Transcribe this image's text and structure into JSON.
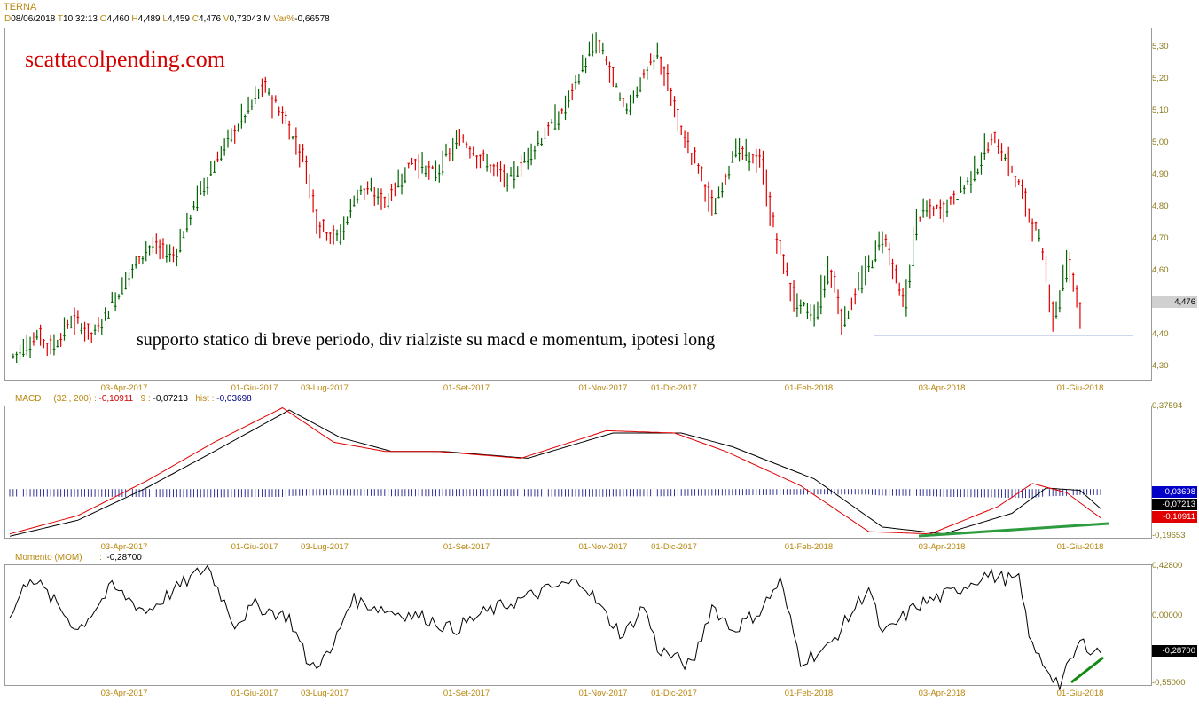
{
  "header": {
    "symbol": "TERNA",
    "d_label": "D",
    "date": "08/06/2018",
    "t_label": "T",
    "time": "10:32:13",
    "o_label": "O",
    "open": "4,460",
    "h_label": "H",
    "high": "4,489",
    "l_label": "L",
    "low": "4,459",
    "c_label": "C",
    "close": "4,476",
    "v_label": "V",
    "volume": "0,73043 M",
    "var_label": "Var%",
    "var": "-0,66578"
  },
  "watermark": "scattacolpending.com",
  "annotation": "supporto statico di breve periodo, div rialziste su macd e momentum, ipotesi long",
  "date_labels": [
    "03-Apr-2017",
    "01-Giu-2017",
    "03-Lug-2017",
    "01-Set-2017",
    "01-Nov-2017",
    "01-Dic-2017",
    "01-Feb-2018",
    "03-Apr-2018",
    "01-Giu-2018"
  ],
  "price_axis": [
    "5,30",
    "5,20",
    "5,10",
    "5,00",
    "4,90",
    "4,80",
    "4,70",
    "4,60",
    "4,50",
    "4,40",
    "4,30"
  ],
  "price_badge": "4,476",
  "macd": {
    "title": "MACD",
    "params": "(32 , 200) :",
    "value": "-0,10911",
    "signal_label": "9 :",
    "signal": "-0,07213",
    "hist_label": "hist :",
    "hist": "-0,03698",
    "axis_top": "0,37594",
    "axis_bottom": "-0,19653"
  },
  "momentum": {
    "title": "Momento (MOM)",
    "sep": ":",
    "value": "-0,28700",
    "axis_top": "0,42800",
    "axis_mid": "0,00000",
    "axis_bottom": "-0,55000"
  },
  "colors": {
    "up": "#006400",
    "down": "#e00000",
    "accent": "#b8860b",
    "support": "#4060c0",
    "trend": "#2e9b3e",
    "watermark": "#d40000"
  },
  "chart_data": [
    {
      "type": "candlestick",
      "title": "TERNA",
      "ylim": [
        4.26,
        5.36
      ],
      "x_dates": [
        "03-Apr-2017",
        "01-Giu-2017",
        "03-Lug-2017",
        "01-Set-2017",
        "01-Nov-2017",
        "01-Dic-2017",
        "01-Feb-2018",
        "03-Apr-2018",
        "01-Giu-2018"
      ],
      "anchors": [
        [
          0,
          4.33
        ],
        [
          8,
          4.4
        ],
        [
          12,
          4.36
        ],
        [
          18,
          4.45
        ],
        [
          24,
          4.4
        ],
        [
          34,
          4.58
        ],
        [
          40,
          4.68
        ],
        [
          48,
          4.65
        ],
        [
          55,
          4.84
        ],
        [
          62,
          4.98
        ],
        [
          68,
          5.08
        ],
        [
          74,
          5.18
        ],
        [
          80,
          5.08
        ],
        [
          86,
          4.95
        ],
        [
          90,
          4.75
        ],
        [
          96,
          4.7
        ],
        [
          102,
          4.86
        ],
        [
          110,
          4.82
        ],
        [
          118,
          4.95
        ],
        [
          124,
          4.9
        ],
        [
          132,
          5.02
        ],
        [
          138,
          4.95
        ],
        [
          146,
          4.88
        ],
        [
          154,
          5.0
        ],
        [
          162,
          5.1
        ],
        [
          168,
          5.25
        ],
        [
          172,
          5.32
        ],
        [
          176,
          5.22
        ],
        [
          180,
          5.1
        ],
        [
          186,
          5.22
        ],
        [
          190,
          5.28
        ],
        [
          196,
          5.05
        ],
        [
          202,
          4.92
        ],
        [
          206,
          4.78
        ],
        [
          212,
          4.98
        ],
        [
          220,
          4.94
        ],
        [
          224,
          4.72
        ],
        [
          230,
          4.5
        ],
        [
          236,
          4.46
        ],
        [
          240,
          4.62
        ],
        [
          244,
          4.44
        ],
        [
          250,
          4.58
        ],
        [
          256,
          4.72
        ],
        [
          262,
          4.48
        ],
        [
          266,
          4.78
        ],
        [
          274,
          4.8
        ],
        [
          282,
          4.9
        ],
        [
          288,
          5.02
        ],
        [
          292,
          4.95
        ],
        [
          296,
          4.86
        ],
        [
          302,
          4.68
        ],
        [
          306,
          4.45
        ],
        [
          310,
          4.64
        ],
        [
          314,
          4.46
        ]
      ],
      "support": 4.4
    },
    {
      "type": "line",
      "name": "MACD (32 , 200)",
      "ylim": [
        -0.19653,
        0.37594
      ],
      "macd_anchors": [
        [
          0,
          -0.18
        ],
        [
          20,
          -0.1
        ],
        [
          40,
          0.05
        ],
        [
          60,
          0.22
        ],
        [
          80,
          0.37
        ],
        [
          95,
          0.22
        ],
        [
          110,
          0.18
        ],
        [
          125,
          0.18
        ],
        [
          150,
          0.15
        ],
        [
          175,
          0.27
        ],
        [
          195,
          0.26
        ],
        [
          210,
          0.18
        ],
        [
          232,
          0.03
        ],
        [
          252,
          -0.17
        ],
        [
          270,
          -0.18
        ],
        [
          290,
          -0.06
        ],
        [
          300,
          0.04
        ],
        [
          310,
          0.0
        ],
        [
          320,
          -0.11
        ]
      ],
      "signal_anchors": [
        [
          0,
          -0.19
        ],
        [
          20,
          -0.12
        ],
        [
          40,
          0.02
        ],
        [
          60,
          0.18
        ],
        [
          82,
          0.36
        ],
        [
          97,
          0.24
        ],
        [
          112,
          0.18
        ],
        [
          127,
          0.18
        ],
        [
          152,
          0.15
        ],
        [
          177,
          0.26
        ],
        [
          197,
          0.26
        ],
        [
          212,
          0.2
        ],
        [
          236,
          0.06
        ],
        [
          256,
          -0.15
        ],
        [
          274,
          -0.18
        ],
        [
          294,
          -0.09
        ],
        [
          304,
          0.02
        ],
        [
          314,
          0.01
        ],
        [
          320,
          -0.07
        ]
      ],
      "hist_last": -0.03698
    },
    {
      "type": "line",
      "name": "Momento (MOM)",
      "ylim": [
        -0.55,
        0.428
      ],
      "anchors": [
        [
          0,
          0.0
        ],
        [
          6,
          0.35
        ],
        [
          14,
          0.1
        ],
        [
          20,
          -0.1
        ],
        [
          30,
          0.25
        ],
        [
          40,
          0.05
        ],
        [
          52,
          0.3
        ],
        [
          58,
          0.42
        ],
        [
          66,
          -0.05
        ],
        [
          72,
          0.1
        ],
        [
          82,
          0.0
        ],
        [
          88,
          -0.4
        ],
        [
          94,
          -0.3
        ],
        [
          100,
          0.15
        ],
        [
          112,
          0.05
        ],
        [
          122,
          0.0
        ],
        [
          130,
          -0.1
        ],
        [
          140,
          0.05
        ],
        [
          150,
          0.15
        ],
        [
          160,
          0.25
        ],
        [
          168,
          0.3
        ],
        [
          174,
          0.05
        ],
        [
          180,
          -0.15
        ],
        [
          186,
          0.1
        ],
        [
          190,
          -0.25
        ],
        [
          200,
          -0.4
        ],
        [
          206,
          0.1
        ],
        [
          212,
          -0.1
        ],
        [
          220,
          0.05
        ],
        [
          226,
          0.3
        ],
        [
          232,
          -0.35
        ],
        [
          240,
          -0.25
        ],
        [
          246,
          0.0
        ],
        [
          252,
          0.25
        ],
        [
          256,
          -0.15
        ],
        [
          266,
          0.1
        ],
        [
          276,
          0.2
        ],
        [
          286,
          0.35
        ],
        [
          296,
          0.3
        ],
        [
          300,
          -0.25
        ],
        [
          308,
          -0.55
        ],
        [
          314,
          -0.2
        ],
        [
          320,
          -0.287
        ]
      ]
    }
  ]
}
